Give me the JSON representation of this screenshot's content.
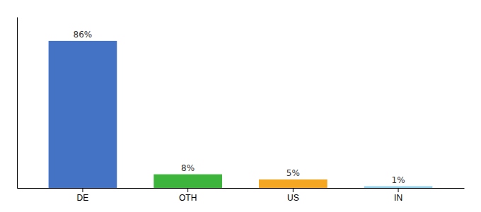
{
  "chart_data": {
    "type": "bar",
    "categories": [
      "DE",
      "OTH",
      "US",
      "IN"
    ],
    "values": [
      86,
      8,
      5,
      1
    ],
    "value_labels": [
      "86%",
      "8%",
      "5%",
      "1%"
    ],
    "colors": [
      "#4472c4",
      "#3db53d",
      "#f5a623",
      "#87ceeb"
    ],
    "ylim": [
      0,
      100
    ],
    "data_labels": true,
    "tick_labels": "x"
  }
}
